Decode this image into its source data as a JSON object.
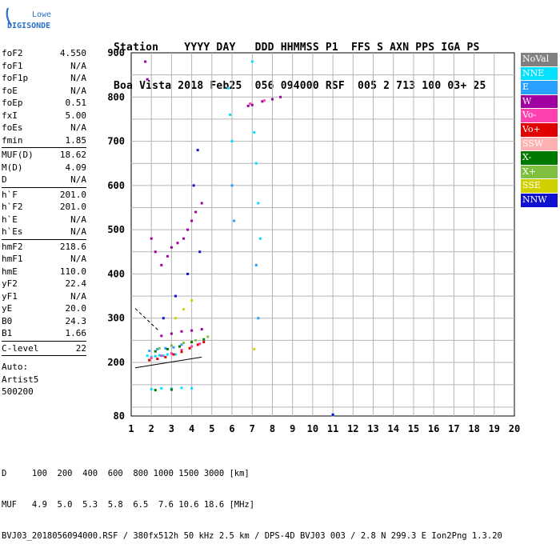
{
  "logo": {
    "brand_top": "Lowell",
    "brand_bottom": "DIGISONDE"
  },
  "header": {
    "line1": "Station    YYYY DAY   DDD HHMMSS P1  FFS S AXN PPS IGA PS",
    "line2": "Boa Vista 2018 Feb25  056 094000 RSF  005 2 713 100 03+ 25"
  },
  "params": {
    "group1": [
      {
        "key": "foF2",
        "val": "4.550"
      },
      {
        "key": "foF1",
        "val": "N/A"
      },
      {
        "key": "foF1p",
        "val": "N/A"
      },
      {
        "key": "foE",
        "val": "N/A"
      },
      {
        "key": "foEp",
        "val": "0.51"
      },
      {
        "key": "fxI",
        "val": "5.00"
      },
      {
        "key": "foEs",
        "val": "N/A"
      },
      {
        "key": "fmin",
        "val": "1.85"
      }
    ],
    "group2": [
      {
        "key": "MUF(D)",
        "val": "18.62"
      },
      {
        "key": "M(D)",
        "val": "4.09"
      },
      {
        "key": "D",
        "val": "N/A"
      }
    ],
    "group3": [
      {
        "key": "h`F",
        "val": "201.0"
      },
      {
        "key": "h`F2",
        "val": "201.0"
      },
      {
        "key": "h`E",
        "val": "N/A"
      },
      {
        "key": "h`Es",
        "val": "N/A"
      }
    ],
    "group4": [
      {
        "key": "hmF2",
        "val": "218.6"
      },
      {
        "key": "hmF1",
        "val": "N/A"
      },
      {
        "key": "hmE",
        "val": "110.0"
      },
      {
        "key": "yF2",
        "val": "22.4"
      },
      {
        "key": "yF1",
        "val": "N/A"
      },
      {
        "key": "yE",
        "val": "20.0"
      },
      {
        "key": "B0",
        "val": "24.3"
      },
      {
        "key": "B1",
        "val": "1.66"
      }
    ],
    "group5": [
      {
        "key": "C-level",
        "val": "22"
      }
    ],
    "auto": [
      "Auto:",
      "Artist5",
      "500200"
    ]
  },
  "legend": [
    {
      "label": "NoVal",
      "color": "#808080"
    },
    {
      "label": "NNE",
      "color": "#00e0ff"
    },
    {
      "label": "E",
      "color": "#28a0ff"
    },
    {
      "label": "W",
      "color": "#a000a0"
    },
    {
      "label": "Vo-",
      "color": "#ff40b0"
    },
    {
      "label": "Vo+",
      "color": "#e00000"
    },
    {
      "label": "SSW",
      "color": "#ffb0b0"
    },
    {
      "label": "X-",
      "color": "#007800"
    },
    {
      "label": "X+",
      "color": "#80c040"
    },
    {
      "label": "SSE",
      "color": "#d0d000"
    },
    {
      "label": "NNW",
      "color": "#1010d0"
    }
  ],
  "bottom": {
    "line1": "D     100  200  400  600  800 1000 1500 3000 [km]",
    "line2": "MUF   4.9  5.0  5.3  5.8  6.5  7.6 10.6 18.6 [MHz]",
    "line3": "BVJ03_2018056094000.RSF / 380fx512h 50 kHz 2.5 km / DPS-4D BVJ03 003 / 2.8 N 299.3 E Ion2Png 1.3.20"
  },
  "chart_data": {
    "type": "scatter",
    "title": "",
    "xlabel": "",
    "ylabel": "",
    "xlim": [
      1,
      20
    ],
    "ylim": [
      80,
      900
    ],
    "x_ticks": [
      "1",
      "2",
      "3",
      "4",
      "5",
      "6",
      "7",
      "8",
      "9",
      "10",
      "11",
      "12",
      "13",
      "14",
      "15",
      "16",
      "17",
      "18",
      "19",
      "20"
    ],
    "y_ticks": [
      "80",
      "200",
      "300",
      "400",
      "500",
      "600",
      "700",
      "800",
      "900"
    ],
    "y_tick_values": [
      80,
      200,
      300,
      400,
      500,
      600,
      700,
      800,
      900
    ],
    "grid": true,
    "legend_placement": "right",
    "series": [
      {
        "name": "NNE",
        "color": "#00e0ff",
        "points": [
          [
            1.8,
            215
          ],
          [
            2.0,
            212
          ],
          [
            2.2,
            214
          ],
          [
            2.4,
            216
          ],
          [
            2.6,
            215
          ],
          [
            2.8,
            218
          ],
          [
            3.0,
            220
          ],
          [
            3.2,
            218
          ],
          [
            2.0,
            140
          ],
          [
            2.5,
            142
          ],
          [
            3.0,
            141
          ],
          [
            3.5,
            143
          ],
          [
            4.0,
            142
          ],
          [
            5.8,
            820
          ],
          [
            5.9,
            760
          ],
          [
            6.0,
            700
          ],
          [
            7.0,
            880
          ],
          [
            7.1,
            720
          ],
          [
            7.2,
            650
          ],
          [
            7.3,
            560
          ],
          [
            7.4,
            480
          ],
          [
            11.0,
            82
          ]
        ]
      },
      {
        "name": "E",
        "color": "#28a0ff",
        "points": [
          [
            1.9,
            226
          ],
          [
            2.3,
            230
          ],
          [
            2.7,
            232
          ],
          [
            3.1,
            234
          ],
          [
            3.5,
            240
          ],
          [
            6.0,
            600
          ],
          [
            6.1,
            520
          ],
          [
            7.2,
            420
          ],
          [
            7.3,
            300
          ]
        ]
      },
      {
        "name": "W",
        "color": "#a000a0",
        "points": [
          [
            1.7,
            880
          ],
          [
            1.8,
            840
          ],
          [
            2.0,
            480
          ],
          [
            2.2,
            450
          ],
          [
            2.5,
            420
          ],
          [
            2.8,
            440
          ],
          [
            3.0,
            460
          ],
          [
            3.3,
            470
          ],
          [
            3.6,
            480
          ],
          [
            3.8,
            500
          ],
          [
            4.0,
            520
          ],
          [
            4.2,
            540
          ],
          [
            4.5,
            560
          ],
          [
            2.5,
            260
          ],
          [
            3.0,
            265
          ],
          [
            3.5,
            270
          ],
          [
            4.0,
            272
          ],
          [
            4.5,
            275
          ],
          [
            6.8,
            780
          ],
          [
            7.0,
            782
          ],
          [
            7.5,
            790
          ],
          [
            8.0,
            795
          ],
          [
            8.4,
            800
          ]
        ]
      },
      {
        "name": "Vo-",
        "color": "#ff40b0",
        "points": [
          [
            2.0,
            210
          ],
          [
            2.5,
            215
          ],
          [
            3.0,
            220
          ],
          [
            3.5,
            228
          ],
          [
            4.0,
            236
          ],
          [
            4.4,
            242
          ],
          [
            6.9,
            785
          ],
          [
            7.6,
            792
          ]
        ]
      },
      {
        "name": "Vo+",
        "color": "#e00000",
        "points": [
          [
            1.9,
            205
          ],
          [
            2.3,
            208
          ],
          [
            2.7,
            212
          ],
          [
            3.1,
            218
          ],
          [
            3.5,
            224
          ],
          [
            3.9,
            232
          ],
          [
            4.3,
            240
          ],
          [
            4.6,
            246
          ]
        ]
      },
      {
        "name": "X-",
        "color": "#007800",
        "points": [
          [
            2.2,
            225
          ],
          [
            2.8,
            230
          ],
          [
            3.4,
            236
          ],
          [
            4.0,
            246
          ],
          [
            4.6,
            252
          ],
          [
            2.2,
            138
          ],
          [
            3.0,
            139
          ]
        ]
      },
      {
        "name": "X+",
        "color": "#80c040",
        "points": [
          [
            2.4,
            232
          ],
          [
            3.0,
            238
          ],
          [
            3.6,
            244
          ],
          [
            4.2,
            250
          ],
          [
            4.8,
            258
          ]
        ]
      },
      {
        "name": "SSE",
        "color": "#d0d000",
        "points": [
          [
            3.2,
            300
          ],
          [
            3.6,
            320
          ],
          [
            4.0,
            340
          ],
          [
            7.1,
            230
          ]
        ]
      },
      {
        "name": "NNW",
        "color": "#1010d0",
        "points": [
          [
            2.6,
            300
          ],
          [
            3.2,
            350
          ],
          [
            3.8,
            400
          ],
          [
            4.4,
            450
          ],
          [
            4.1,
            600
          ],
          [
            4.3,
            680
          ],
          [
            11.0,
            83
          ]
        ]
      }
    ],
    "profile_lines": [
      {
        "points": [
          [
            1.2,
            322
          ],
          [
            2.4,
            270
          ]
        ],
        "style": "dashed"
      },
      {
        "points": [
          [
            1.2,
            188
          ],
          [
            4.5,
            212
          ]
        ],
        "style": "solid"
      }
    ]
  }
}
